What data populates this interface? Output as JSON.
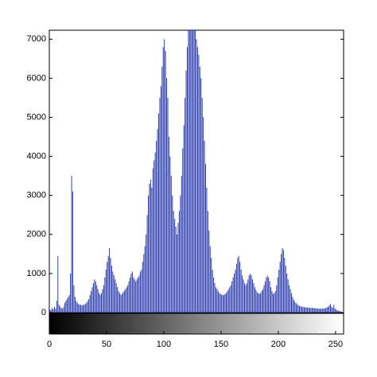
{
  "chart_data": {
    "type": "histogram",
    "xlim": [
      0,
      257
    ],
    "xticks": [
      0,
      50,
      100,
      150,
      200,
      250
    ],
    "ylim": [
      0,
      7230
    ],
    "yticks": [
      0,
      1000,
      2000,
      3000,
      4000,
      5000,
      6000,
      7000
    ],
    "color": "#2f3fb0",
    "values": [
      80,
      60,
      120,
      90,
      150,
      100,
      300,
      1450,
      200,
      150,
      120,
      100,
      150,
      250,
      300,
      350,
      400,
      450,
      1000,
      3500,
      3100,
      700,
      400,
      300,
      250,
      220,
      200,
      200,
      180,
      200,
      200,
      220,
      250,
      300,
      350,
      450,
      550,
      650,
      750,
      850,
      800,
      700,
      600,
      500,
      450,
      500,
      600,
      700,
      900,
      1100,
      1300,
      1450,
      1650,
      1400,
      1200,
      1050,
      950,
      850,
      750,
      650,
      550,
      500,
      450,
      480,
      520,
      560,
      600,
      650,
      700,
      800,
      900,
      1000,
      1050,
      900,
      850,
      800,
      850,
      900,
      950,
      1050,
      1100,
      1300,
      1500,
      1700,
      2000,
      2500,
      3000,
      3300,
      3400,
      3200,
      3700,
      3900,
      4100,
      4400,
      4700,
      5100,
      5500,
      5800,
      6300,
      6800,
      7000,
      6700,
      6000,
      5500,
      4500,
      4000,
      3500,
      3000,
      2600,
      2400,
      2200,
      2000,
      2300,
      2600,
      3000,
      3500,
      4200,
      4800,
      5500,
      6200,
      6800,
      7300,
      7500,
      7500,
      7500,
      7500,
      7500,
      7300,
      7000,
      6800,
      6600,
      6300,
      6000,
      5500,
      5000,
      4400,
      3800,
      3200,
      2600,
      2100,
      1700,
      1400,
      1100,
      900,
      750,
      650,
      600,
      550,
      500,
      480,
      460,
      450,
      450,
      480,
      500,
      550,
      600,
      650,
      700,
      800,
      900,
      1000,
      1100,
      1250,
      1400,
      1450,
      1300,
      1100,
      950,
      850,
      750,
      700,
      750,
      850,
      950,
      1000,
      950,
      850,
      750,
      650,
      580,
      520,
      500,
      480,
      500,
      550,
      600,
      700,
      800,
      900,
      950,
      900,
      800,
      650,
      550,
      480,
      500,
      550,
      700,
      900,
      1100,
      1300,
      1500,
      1650,
      1600,
      1400,
      1200,
      1000,
      850,
      700,
      600,
      500,
      400,
      330,
      280,
      240,
      210,
      190,
      170,
      160,
      150,
      150,
      140,
      140,
      130,
      130,
      130,
      120,
      120,
      120,
      120,
      110,
      110,
      110,
      100,
      100,
      100,
      100,
      100,
      110,
      110,
      120,
      130,
      150,
      180,
      220,
      150,
      120,
      200,
      100,
      80,
      60,
      50,
      40,
      30,
      20
    ]
  }
}
